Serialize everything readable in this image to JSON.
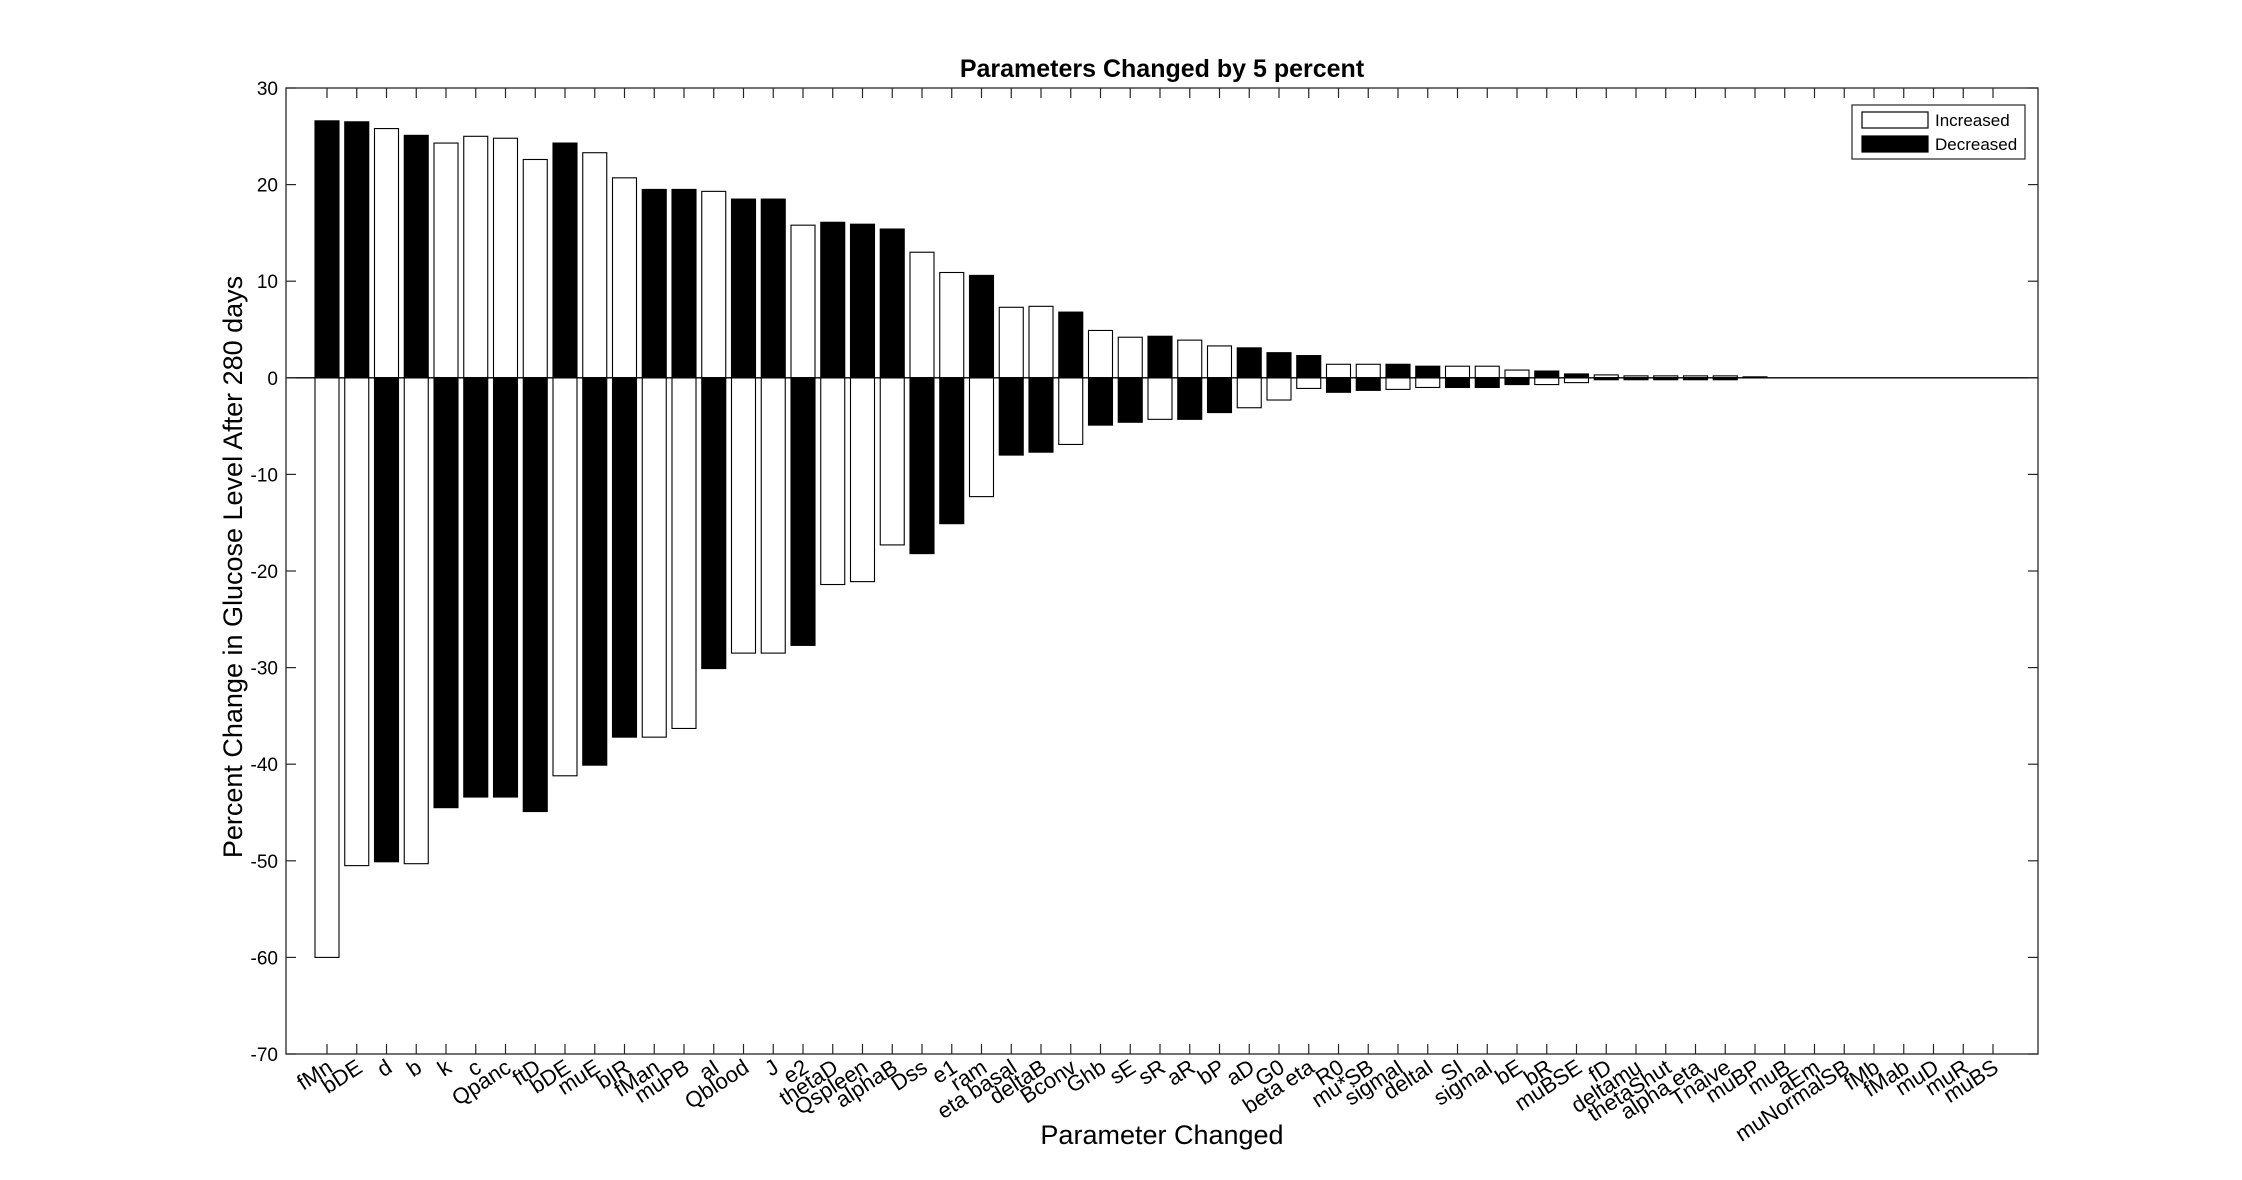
{
  "chart_data": {
    "type": "bar",
    "title": "Parameters Changed by 5 percent",
    "xlabel": "Parameter Changed",
    "ylabel": "Percent Change in Glucose Level After 280 days",
    "ylim": [
      -70,
      30
    ],
    "yticks": [
      30,
      20,
      10,
      0,
      -10,
      -20,
      -30,
      -40,
      -50,
      -60,
      -70
    ],
    "legend_position": "top-right",
    "grid": false,
    "categories": [
      "fMn",
      "bDE",
      "d",
      "b",
      "k",
      "c",
      "Qpanc",
      "ftD",
      "bDE",
      "muE",
      "bIR",
      "fMan",
      "muPB",
      "aI",
      "Qblood",
      "J",
      "e2",
      "thetaD",
      "Qspleen",
      "alphaB",
      "Dss",
      "e1",
      "ram",
      "eta basal",
      "deltaB",
      "Bconv",
      "Ghb",
      "sE",
      "sR",
      "aR",
      "bP",
      "aD",
      "G0",
      "beta eta",
      "R0",
      "mu*SB",
      "sigmaI",
      "deltaI",
      "SI",
      "sigmaI",
      "bE",
      "bR",
      "muBSE",
      "fD",
      "deltamu",
      "thetaShut",
      "alpha eta",
      "Tnaive",
      "muBP",
      "muB",
      "aEm",
      "muNormalSB",
      "fMb",
      "fMab",
      "muD",
      "muR",
      "muBS"
    ],
    "series": [
      {
        "name": "Increased",
        "color": "#ffffff",
        "values": [
          -60,
          -50.5,
          25.8,
          -50.3,
          24.3,
          25,
          24.8,
          22.6,
          -41.2,
          23.3,
          20.7,
          -37.2,
          -36.3,
          19.3,
          -28.5,
          -28.5,
          15.8,
          -21.4,
          -21.1,
          -17.3,
          13,
          10.9,
          -12.3,
          7.3,
          7.4,
          -6.9,
          4.9,
          4.2,
          -4.3,
          3.9,
          3.3,
          -3.1,
          -2.3,
          -1.1,
          1.4,
          1.4,
          -1.2,
          -1,
          1.2,
          1.2,
          0.8,
          -0.7,
          -0.5,
          0.3,
          0.2,
          0.2,
          0.2,
          0.2,
          0,
          0,
          0,
          0,
          0,
          0,
          0,
          0,
          0
        ]
      },
      {
        "name": "Decreased",
        "color": "#000000",
        "values": [
          26.6,
          26.5,
          -50.1,
          25.1,
          -44.5,
          -43.4,
          -43.4,
          -44.9,
          24.3,
          -40.1,
          -37.2,
          19.5,
          19.5,
          -30.1,
          18.5,
          18.5,
          -27.7,
          16.1,
          15.9,
          15.4,
          -18.2,
          -15.1,
          10.6,
          -8,
          -7.7,
          6.8,
          -4.9,
          -4.6,
          4.3,
          -4.3,
          -3.6,
          3.1,
          2.6,
          2.3,
          -1.5,
          -1.3,
          1.4,
          1.2,
          -1,
          -1,
          -0.7,
          0.7,
          0.4,
          -0.2,
          -0.2,
          -0.2,
          -0.2,
          -0.2,
          0.1,
          0,
          0,
          0,
          0,
          0,
          0,
          0,
          0
        ]
      }
    ]
  }
}
